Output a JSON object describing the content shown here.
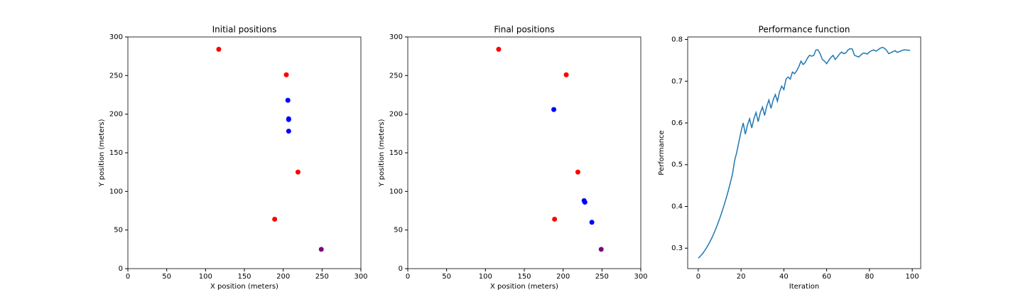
{
  "chart_data": [
    {
      "type": "scatter",
      "title": "Initial positions",
      "x_label": "X position (meters)",
      "y_label": "Y position (meters)",
      "xlim": [
        0,
        300
      ],
      "ylim": [
        0,
        300
      ],
      "xticks": [
        0,
        50,
        100,
        150,
        200,
        250,
        300
      ],
      "yticks": [
        0,
        50,
        100,
        150,
        200,
        250,
        300
      ],
      "series": [
        {
          "color": "#ff0000",
          "x": [
            117,
            204,
            219,
            189
          ],
          "values": [
            284,
            251,
            125,
            64
          ]
        },
        {
          "color": "#0000ff",
          "x": [
            206,
            207,
            207,
            207
          ],
          "values": [
            218,
            194,
            193,
            178
          ]
        },
        {
          "color": "#800080",
          "x": [
            249
          ],
          "values": [
            25
          ]
        }
      ]
    },
    {
      "type": "scatter",
      "title": "Final positions",
      "x_label": "X position (meters)",
      "y_label": "Y position (meters)",
      "xlim": [
        0,
        300
      ],
      "ylim": [
        0,
        300
      ],
      "xticks": [
        0,
        50,
        100,
        150,
        200,
        250,
        300
      ],
      "yticks": [
        0,
        50,
        100,
        150,
        200,
        250,
        300
      ],
      "series": [
        {
          "color": "#ff0000",
          "x": [
            117,
            204,
            219,
            189
          ],
          "values": [
            284,
            251,
            125,
            64
          ]
        },
        {
          "color": "#0000ff",
          "x": [
            188,
            227,
            228,
            237
          ],
          "values": [
            206,
            88,
            86,
            60
          ]
        },
        {
          "color": "#800080",
          "x": [
            249
          ],
          "values": [
            25
          ]
        }
      ]
    },
    {
      "type": "line",
      "title": "Performance function",
      "x_label": "Iteration",
      "y_label": "Performance",
      "xlim": [
        -4.95,
        103.95
      ],
      "ylim": [
        0.251,
        0.806
      ],
      "xticks": [
        0,
        20,
        40,
        60,
        80,
        100
      ],
      "yticks": [
        0.3,
        0.4,
        0.5,
        0.6,
        0.7,
        0.8
      ],
      "series": [
        {
          "color": "#1f77b4",
          "x": [
            0,
            1,
            2,
            3,
            4,
            5,
            6,
            7,
            8,
            9,
            10,
            11,
            12,
            13,
            14,
            15,
            16,
            17,
            18,
            19,
            20,
            21,
            22,
            23,
            24,
            25,
            26,
            27,
            28,
            29,
            30,
            31,
            32,
            33,
            34,
            35,
            36,
            37,
            38,
            39,
            40,
            41,
            42,
            43,
            44,
            45,
            46,
            47,
            48,
            49,
            50,
            51,
            52,
            53,
            54,
            55,
            56,
            57,
            58,
            59,
            60,
            61,
            62,
            63,
            64,
            65,
            66,
            67,
            68,
            69,
            70,
            71,
            72,
            73,
            74,
            75,
            76,
            77,
            78,
            79,
            80,
            81,
            82,
            83,
            84,
            85,
            86,
            87,
            88,
            89,
            90,
            91,
            92,
            93,
            94,
            95,
            96,
            97,
            98,
            99
          ],
          "values": [
            0.276,
            0.281,
            0.287,
            0.294,
            0.302,
            0.311,
            0.321,
            0.332,
            0.344,
            0.357,
            0.371,
            0.386,
            0.402,
            0.419,
            0.437,
            0.457,
            0.478,
            0.51,
            0.53,
            0.555,
            0.58,
            0.6,
            0.573,
            0.595,
            0.61,
            0.588,
            0.61,
            0.625,
            0.603,
            0.625,
            0.638,
            0.618,
            0.64,
            0.655,
            0.635,
            0.655,
            0.668,
            0.652,
            0.675,
            0.688,
            0.68,
            0.705,
            0.71,
            0.705,
            0.722,
            0.718,
            0.725,
            0.735,
            0.748,
            0.74,
            0.745,
            0.755,
            0.762,
            0.76,
            0.762,
            0.775,
            0.775,
            0.765,
            0.752,
            0.748,
            0.742,
            0.75,
            0.757,
            0.762,
            0.752,
            0.758,
            0.765,
            0.77,
            0.766,
            0.768,
            0.775,
            0.778,
            0.777,
            0.762,
            0.76,
            0.758,
            0.763,
            0.767,
            0.767,
            0.765,
            0.77,
            0.773,
            0.775,
            0.772,
            0.775,
            0.779,
            0.781,
            0.779,
            0.774,
            0.766,
            0.768,
            0.771,
            0.773,
            0.769,
            0.771,
            0.773,
            0.775,
            0.775,
            0.774,
            0.774
          ]
        }
      ]
    }
  ]
}
